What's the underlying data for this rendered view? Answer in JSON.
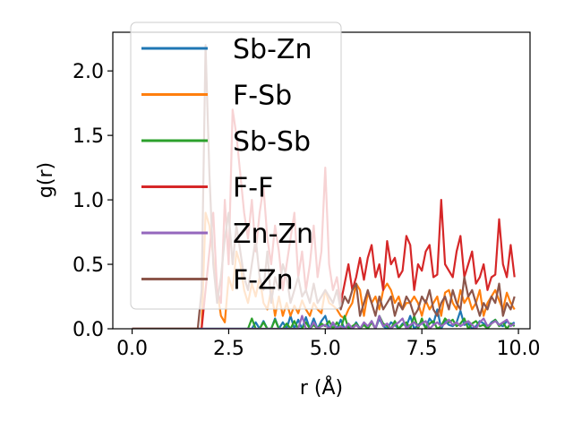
{
  "chart_data": {
    "type": "line",
    "title": "",
    "xlabel": "r (Å)",
    "ylabel": "g(r)",
    "xlim": [
      -0.5,
      10.3
    ],
    "ylim": [
      0,
      2.3
    ],
    "xticks": [
      0.0,
      2.5,
      5.0,
      7.5,
      10.0
    ],
    "xtick_labels": [
      "0.0",
      "2.5",
      "5.0",
      "7.5",
      "10.0"
    ],
    "yticks": [
      0.0,
      0.5,
      1.0,
      1.5,
      2.0
    ],
    "ytick_labels": [
      "0.0",
      "0.5",
      "1.0",
      "1.5",
      "2.0"
    ],
    "grid": false,
    "legend_placement": "upper-left",
    "x": [
      0.0,
      0.1,
      0.2,
      0.3,
      0.4,
      0.5,
      0.6,
      0.7,
      0.8,
      0.9,
      1.0,
      1.1,
      1.2,
      1.3,
      1.4,
      1.5,
      1.6,
      1.7,
      1.8,
      1.9,
      2.0,
      2.1,
      2.2,
      2.3,
      2.4,
      2.5,
      2.6,
      2.7,
      2.8,
      2.9,
      3.0,
      3.1,
      3.2,
      3.3,
      3.4,
      3.5,
      3.6,
      3.7,
      3.8,
      3.9,
      4.0,
      4.1,
      4.2,
      4.3,
      4.4,
      4.5,
      4.6,
      4.7,
      4.8,
      4.9,
      5.0,
      5.1,
      5.2,
      5.3,
      5.4,
      5.5,
      5.6,
      5.7,
      5.8,
      5.9,
      6.0,
      6.1,
      6.2,
      6.3,
      6.4,
      6.5,
      6.6,
      6.7,
      6.8,
      6.9,
      7.0,
      7.1,
      7.2,
      7.3,
      7.4,
      7.5,
      7.6,
      7.7,
      7.8,
      7.9,
      8.0,
      8.1,
      8.2,
      8.3,
      8.4,
      8.5,
      8.6,
      8.7,
      8.8,
      8.9,
      9.0,
      9.1,
      9.2,
      9.3,
      9.4,
      9.5,
      9.6,
      9.7,
      9.8,
      9.9
    ],
    "series": [
      {
        "name": "Sb-Zn",
        "color": "#1f77b4",
        "values": [
          0,
          0,
          0,
          0,
          0,
          0,
          0,
          0,
          0,
          0,
          0,
          0,
          0,
          0,
          0,
          0,
          0,
          0,
          0,
          0,
          0,
          0,
          0,
          0,
          0,
          0,
          0,
          0,
          0,
          0,
          0,
          0,
          0.05,
          0,
          0.06,
          0,
          0,
          0.08,
          0,
          0.05,
          0,
          0.1,
          0,
          0.07,
          0,
          0.09,
          0,
          0.08,
          0,
          0.06,
          0.1,
          0,
          0.04,
          0,
          0.07,
          0,
          0.03,
          0,
          0.05,
          0,
          0.04,
          0,
          0.06,
          0,
          0.08,
          0.02,
          0,
          0.05,
          0.03,
          0,
          0.04,
          0.02,
          0.1,
          0,
          0.03,
          0.05,
          0.01,
          0.08,
          0.04,
          0.15,
          0,
          0.06,
          0.03,
          0.02,
          0.05,
          0.14,
          0.03,
          0.04,
          0,
          0.02,
          0.06,
          0.04,
          0.01,
          0.05,
          0.07,
          0.03,
          0.02,
          0.06,
          0.03,
          0.05
        ]
      },
      {
        "name": "F-Sb",
        "color": "#ff7f0e",
        "values": [
          0,
          0,
          0,
          0,
          0,
          0,
          0,
          0,
          0,
          0,
          0,
          0,
          0,
          0,
          0,
          0,
          0,
          0,
          0,
          0.9,
          0.8,
          0.55,
          0.3,
          0.1,
          0.05,
          0.4,
          0.3,
          0.6,
          0.5,
          0.3,
          0.2,
          0.35,
          0.25,
          0.4,
          0.2,
          0.15,
          0.3,
          0.1,
          0.25,
          0.1,
          0.2,
          0.1,
          0.18,
          0.12,
          0.22,
          0.15,
          0.1,
          0.2,
          0.15,
          0.12,
          0.3,
          0.2,
          0.18,
          0.15,
          0.1,
          0.08,
          0.15,
          0.2,
          0.35,
          0.3,
          0.1,
          0.28,
          0.2,
          0.25,
          0.15,
          0.3,
          0.35,
          0.3,
          0.2,
          0.25,
          0.15,
          0.2,
          0.2,
          0.25,
          0.2,
          0.1,
          0.22,
          0.15,
          0.2,
          0.25,
          0.1,
          0.28,
          0.3,
          0.2,
          0.15,
          0.3,
          0.2,
          0.25,
          0.15,
          0.2,
          0.3,
          0.1,
          0.2,
          0.25,
          0.3,
          0.22,
          0.15,
          0.28,
          0.2,
          0.15
        ]
      },
      {
        "name": "Sb-Sb",
        "color": "#2ca02c",
        "values": [
          0,
          0,
          0,
          0,
          0,
          0,
          0,
          0,
          0,
          0,
          0,
          0,
          0,
          0,
          0,
          0,
          0,
          0,
          0,
          0,
          0,
          0,
          0,
          0,
          0,
          0,
          0,
          0,
          0,
          0,
          0,
          0.08,
          0,
          0,
          0.05,
          0,
          0,
          0.07,
          0,
          0,
          0.04,
          0,
          0.06,
          0,
          0,
          0.05,
          0,
          0.03,
          0,
          0.04,
          0.02,
          0.06,
          0,
          0.05,
          0,
          0.1,
          0,
          0.02,
          0.04,
          0,
          0.03,
          0,
          0.05,
          0,
          0.1,
          0.04,
          0.02,
          0,
          0.06,
          0,
          0.03,
          0.05,
          0,
          0.1,
          0,
          0.08,
          0,
          0.04,
          0.06,
          0,
          0.02,
          0.08,
          0.05,
          0.07,
          0.02,
          0.04,
          0.08,
          0,
          0.04,
          0.06,
          0.02,
          0.03,
          0,
          0.04,
          0.07,
          0.02,
          0.05,
          0,
          0.04,
          0.02
        ]
      },
      {
        "name": "F-F",
        "color": "#d62728",
        "values": [
          0,
          0,
          0,
          0,
          0,
          0,
          0,
          0,
          0,
          0,
          0,
          0,
          0,
          0,
          0,
          0,
          0,
          0,
          0,
          0.3,
          0.6,
          0.9,
          0.3,
          0.2,
          1.0,
          0.5,
          1.7,
          1.5,
          1.2,
          0.9,
          0.7,
          1.0,
          0.6,
          0.9,
          1.1,
          0.7,
          0.5,
          0.8,
          0.6,
          0.3,
          0.5,
          0.7,
          0.9,
          0.4,
          0.6,
          0.3,
          0.5,
          0.8,
          0.4,
          0.6,
          1.25,
          0.5,
          0.3,
          0.4,
          0.2,
          0.35,
          0.5,
          0.3,
          0.4,
          0.55,
          0.38,
          0.55,
          0.65,
          0.4,
          0.5,
          0.3,
          0.68,
          0.5,
          0.55,
          0.4,
          0.45,
          0.72,
          0.65,
          0.3,
          0.5,
          0.45,
          0.6,
          0.65,
          0.4,
          0.42,
          1.0,
          0.5,
          0.45,
          0.4,
          0.6,
          0.72,
          0.4,
          0.5,
          0.6,
          0.35,
          0.4,
          0.5,
          0.3,
          0.4,
          0.42,
          0.85,
          0.5,
          0.4,
          0.65,
          0.4
        ]
      },
      {
        "name": "Zn-Zn",
        "color": "#9467bd",
        "values": [
          0,
          0,
          0,
          0,
          0,
          0,
          0,
          0,
          0,
          0,
          0,
          0,
          0,
          0,
          0,
          0,
          0,
          0,
          0,
          0,
          0,
          0,
          0,
          0,
          0,
          0,
          0,
          0,
          0,
          0,
          0,
          0,
          0,
          0,
          0,
          0,
          0,
          0,
          0,
          0,
          0,
          0,
          0,
          0,
          0.1,
          0,
          0,
          0.05,
          0,
          0.02,
          0.03,
          0,
          0.05,
          0,
          0.02,
          0,
          0.04,
          0,
          0.03,
          0,
          0.05,
          0.02,
          0.06,
          0,
          0.1,
          0.02,
          0.04,
          0,
          0.03,
          0.05,
          0.08,
          0,
          0.03,
          0.05,
          0.02,
          0.04,
          0.06,
          0,
          0.03,
          0.05,
          0.02,
          0.04,
          0.07,
          0.03,
          0.05,
          0.02,
          0.04,
          0.06,
          0.03,
          0,
          0.05,
          0.08,
          0.02,
          0.04,
          0.06,
          0.03,
          0.05,
          0.07,
          0.02,
          0.04
        ]
      },
      {
        "name": "F-Zn",
        "color": "#8c564b",
        "values": [
          0,
          0,
          0,
          0,
          0,
          0,
          0,
          0,
          0,
          0,
          0,
          0,
          0,
          0,
          0,
          0,
          0,
          0,
          0.3,
          2.2,
          1.2,
          0.5,
          0.2,
          0.4,
          0.7,
          0.9,
          0.5,
          0.8,
          0.6,
          0.4,
          0.3,
          0.5,
          0.7,
          0.4,
          0.3,
          0.6,
          0.2,
          0.4,
          0.3,
          0.5,
          0.4,
          0.2,
          0.3,
          0.4,
          0.25,
          0.3,
          0.2,
          0.35,
          0.2,
          0.25,
          0.3,
          0.25,
          0.2,
          0.3,
          0.15,
          0.25,
          0.2,
          0.3,
          0.35,
          0.1,
          0.2,
          0.3,
          0.2,
          0.1,
          0.25,
          0.15,
          0.2,
          0.25,
          0.1,
          0.2,
          0.15,
          0.25,
          0.2,
          0.1,
          0.15,
          0.25,
          0.2,
          0.3,
          0.15,
          0.1,
          0.2,
          0.25,
          0.15,
          0.3,
          0.2,
          0.15,
          0.4,
          0.25,
          0.3,
          0.2,
          0.1,
          0.2,
          0.15,
          0.25,
          0.2,
          0.35,
          0.1,
          0.2,
          0.15,
          0.25
        ]
      }
    ]
  }
}
